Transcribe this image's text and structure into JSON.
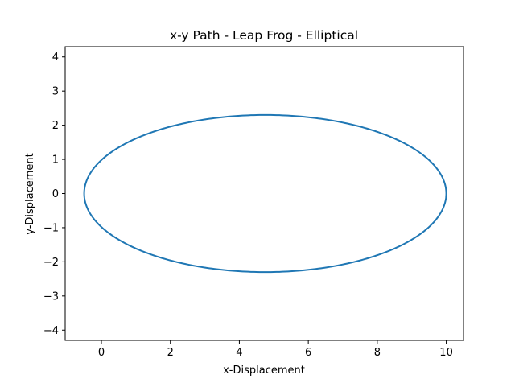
{
  "chart_data": {
    "type": "line",
    "title": "x-y Path - Leap Frog - Elliptical",
    "xlabel": "x-Displacement",
    "ylabel": "y-Displacement",
    "xlim": [
      -1.05,
      10.5
    ],
    "ylim": [
      -4.3,
      4.3
    ],
    "xticks": [
      0,
      2,
      4,
      6,
      8,
      10
    ],
    "yticks": [
      -4,
      -3,
      -2,
      -1,
      0,
      1,
      2,
      3,
      4
    ],
    "xtick_labels": [
      "0",
      "2",
      "4",
      "6",
      "8",
      "10"
    ],
    "ytick_labels": [
      "−4",
      "−3",
      "−2",
      "−1",
      "0",
      "1",
      "2",
      "3",
      "4"
    ],
    "grid": false,
    "series": [
      {
        "color": "#1f77b4",
        "shape": "ellipse",
        "center": [
          4.75,
          0
        ],
        "semi_axes": [
          5.25,
          2.3
        ]
      }
    ]
  }
}
